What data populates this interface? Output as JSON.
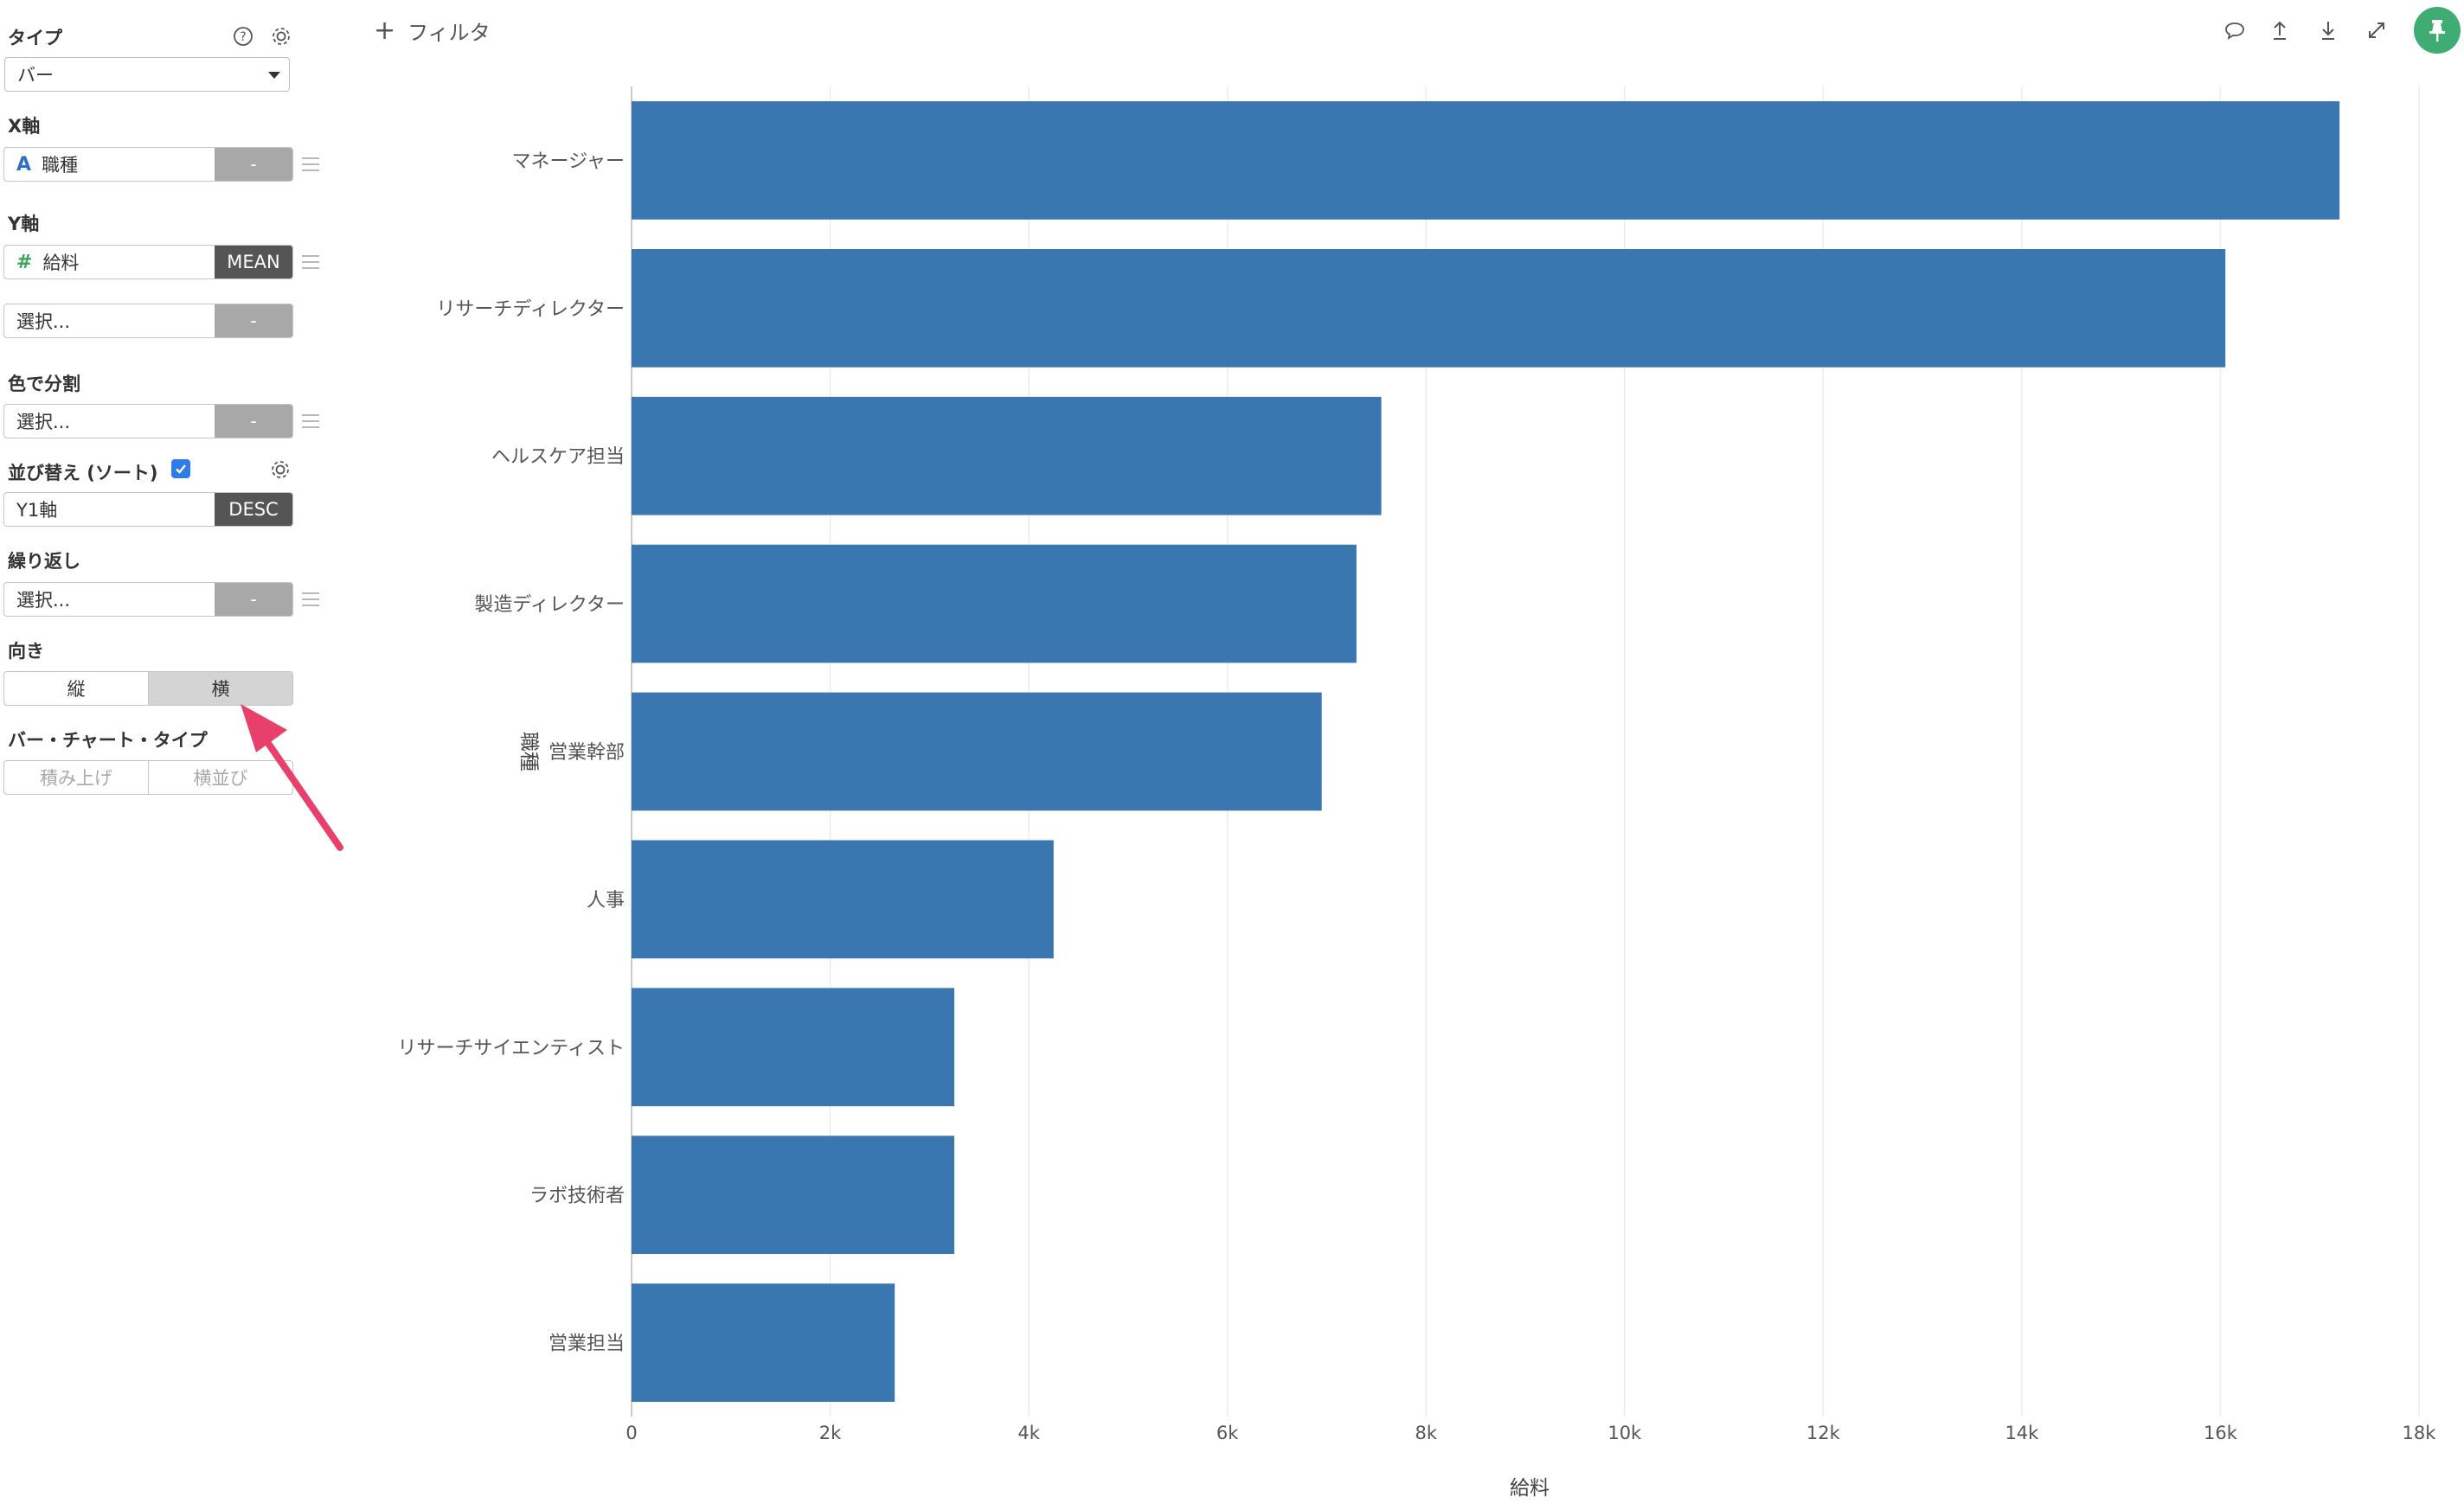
{
  "sidebar": {
    "type": {
      "label": "タイプ",
      "value": "バー",
      "help_icon": "question-circle-icon",
      "settings_icon": "gear-icon"
    },
    "x_axis": {
      "label": "X軸",
      "type_badge": "A",
      "field": "職種",
      "agg": "-"
    },
    "y_axis": {
      "label": "Y軸",
      "type_badge": "#",
      "field": "給料",
      "agg": "MEAN",
      "second_field": "選択...",
      "second_agg": "-"
    },
    "color_split": {
      "label": "色で分割",
      "field": "選択...",
      "agg": "-"
    },
    "sort": {
      "label": "並び替え (ソート)",
      "checked": true,
      "field": "Y1軸",
      "order": "DESC"
    },
    "repeat": {
      "label": "繰り返し",
      "field": "選択...",
      "agg": "-"
    },
    "orientation": {
      "label": "向き",
      "options": [
        "縦",
        "横"
      ],
      "selected": "横"
    },
    "bar_type": {
      "label": "バー・チャート・タイプ",
      "options": [
        "積み上げ",
        "横並び"
      ]
    }
  },
  "topbar": {
    "filter_label": "フィルタ",
    "icons": [
      "comment-icon",
      "upload-icon",
      "download-icon",
      "expand-icon",
      "pin-icon"
    ]
  },
  "colors": {
    "bar": "#3a76b0",
    "accent_pin": "#3eac73",
    "arrow": "#e8406b",
    "checkbox": "#2f7ce8"
  },
  "chart_data": {
    "type": "bar",
    "orientation": "horizontal",
    "categories": [
      "マネージャー",
      "リサーチディレクター",
      "ヘルスケア担当",
      "製造ディレクター",
      "営業幹部",
      "人事",
      "リサーチサイエンティスト",
      "ラボ技術者",
      "営業担当"
    ],
    "values": [
      17200,
      16050,
      7550,
      7300,
      6950,
      4250,
      3250,
      3250,
      2650
    ],
    "xlabel": "給料",
    "ylabel": "職種",
    "xlim": [
      0,
      18000
    ],
    "xticks": [
      "0",
      "2k",
      "4k",
      "6k",
      "8k",
      "10k",
      "12k",
      "14k",
      "16k",
      "18k"
    ],
    "grid": true
  }
}
